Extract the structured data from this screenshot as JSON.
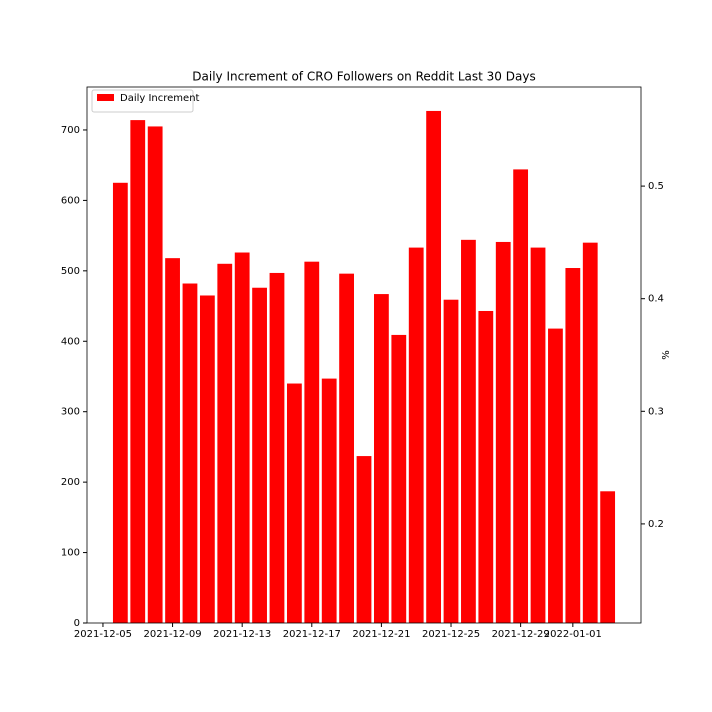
{
  "chart_data": {
    "type": "bar",
    "title": "Daily Increment of CRO Followers on Reddit Last 30 Days",
    "x": [
      "2021-12-06",
      "2021-12-07",
      "2021-12-08",
      "2021-12-09",
      "2021-12-10",
      "2021-12-11",
      "2021-12-12",
      "2021-12-13",
      "2021-12-14",
      "2021-12-15",
      "2021-12-16",
      "2021-12-17",
      "2021-12-18",
      "2021-12-19",
      "2021-12-20",
      "2021-12-21",
      "2021-12-22",
      "2021-12-23",
      "2021-12-24",
      "2021-12-25",
      "2021-12-26",
      "2021-12-27",
      "2021-12-28",
      "2021-12-29",
      "2021-12-30",
      "2021-12-31",
      "2022-01-01",
      "2022-01-02",
      "2022-01-03"
    ],
    "series": [
      {
        "name": "Daily Increment",
        "color": "#ff0000",
        "values": [
          625,
          714,
          705,
          518,
          482,
          465,
          510,
          526,
          476,
          497,
          340,
          513,
          347,
          496,
          237,
          467,
          409,
          533,
          727,
          459,
          544,
          443,
          541,
          644,
          533,
          418,
          504,
          540,
          187
        ]
      }
    ],
    "xlim": [
      "2021-12-04T02:00",
      "2022-01-04T22:00"
    ],
    "xticks": [
      "2021-12-05",
      "2021-12-09",
      "2021-12-13",
      "2021-12-17",
      "2021-12-21",
      "2021-12-25",
      "2021-12-29",
      "2022-01-01"
    ],
    "ylim": [
      0,
      761
    ],
    "yticks": [
      0,
      100,
      200,
      300,
      400,
      500,
      600,
      700
    ],
    "y2label": "%",
    "y2lim": [
      0.112,
      0.588
    ],
    "y2ticks": [
      0.2,
      0.3,
      0.4,
      0.5
    ],
    "legend": "upper left"
  }
}
